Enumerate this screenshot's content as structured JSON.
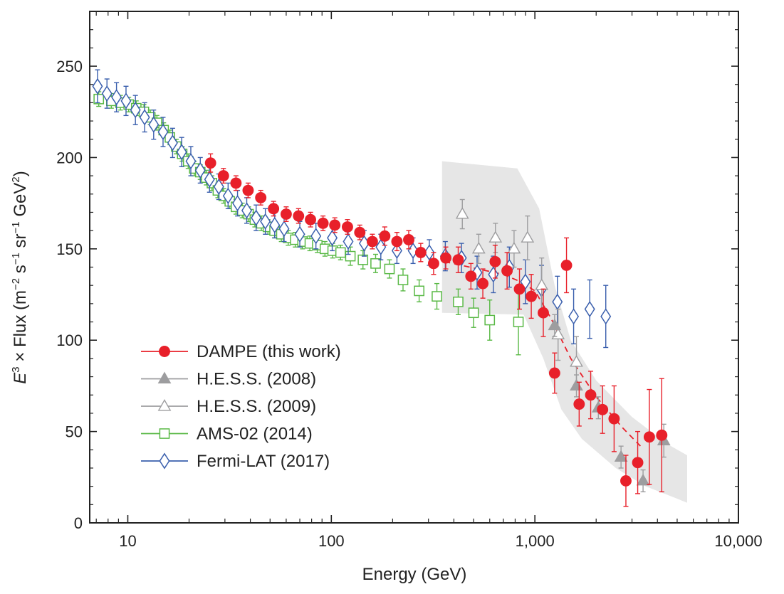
{
  "chart_data": {
    "type": "scatter",
    "x_scale": "log",
    "xlim": [
      6.5,
      10000
    ],
    "ylim": [
      0,
      280
    ],
    "xlabel": "Energy (GeV)",
    "ylabel": {
      "prefix": "E",
      "prefix_sup": "3",
      "text": " × Flux (m",
      "s1": "−2",
      "t1": " s",
      "s2": "−1",
      "t2": " sr",
      "s3": "−1",
      "t3": " GeV",
      "s4": "2",
      "t4": ")"
    },
    "x_ticks": [
      {
        "value": 10,
        "label": "10"
      },
      {
        "value": 100,
        "label": "100"
      },
      {
        "value": 1000,
        "label": "1,000"
      },
      {
        "value": 10000,
        "label": "10,000"
      }
    ],
    "y_ticks": [
      {
        "value": 0,
        "label": "0"
      },
      {
        "value": 50,
        "label": "50"
      },
      {
        "value": 100,
        "label": "100"
      },
      {
        "value": 150,
        "label": "150"
      },
      {
        "value": 200,
        "label": "200"
      },
      {
        "value": 250,
        "label": "250"
      }
    ],
    "legend_placement": "lower-left",
    "band": {
      "color": "#e6e6e6",
      "upper": [
        [
          350,
          198
        ],
        [
          820,
          194
        ],
        [
          1050,
          172
        ],
        [
          1250,
          130
        ],
        [
          1500,
          100
        ],
        [
          2000,
          78
        ],
        [
          3000,
          58
        ],
        [
          4500,
          43
        ],
        [
          5600,
          37
        ]
      ],
      "lower": [
        [
          350,
          115
        ],
        [
          880,
          114
        ],
        [
          1100,
          90
        ],
        [
          1350,
          62
        ],
        [
          1700,
          46
        ],
        [
          2500,
          30
        ],
        [
          3500,
          20
        ],
        [
          4800,
          14
        ],
        [
          5600,
          11
        ]
      ]
    },
    "fit_line": {
      "color": "#e8202a",
      "points": [
        [
          360,
          143
        ],
        [
          700,
          136
        ],
        [
          850,
          132
        ],
        [
          1000,
          127
        ],
        [
          1200,
          112
        ],
        [
          1500,
          90
        ],
        [
          2000,
          69
        ],
        [
          2700,
          52
        ],
        [
          3300,
          42
        ]
      ]
    },
    "series": [
      {
        "name": "DAMPE (this work)",
        "color": "#e8202a",
        "marker": "circle-filled",
        "points": [
          [
            25.5,
            197,
            5
          ],
          [
            29.5,
            190,
            4
          ],
          [
            34,
            186,
            4
          ],
          [
            39,
            182,
            4
          ],
          [
            45,
            178,
            4
          ],
          [
            52,
            172,
            4
          ],
          [
            60,
            169,
            4
          ],
          [
            69,
            168,
            4
          ],
          [
            79,
            166,
            4
          ],
          [
            91,
            164,
            4
          ],
          [
            104,
            163,
            4
          ],
          [
            120,
            162,
            4
          ],
          [
            138,
            159,
            4
          ],
          [
            159,
            154,
            4
          ],
          [
            183,
            157,
            5
          ],
          [
            210,
            154,
            5
          ],
          [
            240,
            155,
            5
          ],
          [
            275,
            148,
            5
          ],
          [
            318,
            142,
            6
          ],
          [
            365,
            145,
            6
          ],
          [
            420,
            144,
            7
          ],
          [
            485,
            135,
            7
          ],
          [
            555,
            131,
            8
          ],
          [
            638,
            143,
            9
          ],
          [
            730,
            138,
            10
          ],
          [
            840,
            128,
            11
          ],
          [
            960,
            124,
            12
          ],
          [
            1100,
            115,
            13
          ],
          [
            1250,
            82,
            11
          ],
          [
            1430,
            141,
            15
          ],
          [
            1650,
            65,
            12
          ],
          [
            1880,
            70,
            13
          ],
          [
            2150,
            62,
            13
          ],
          [
            2450,
            57,
            18
          ],
          [
            2800,
            23,
            14
          ],
          [
            3200,
            33,
            17
          ],
          [
            3650,
            47,
            26
          ],
          [
            4200,
            48,
            31
          ]
        ]
      },
      {
        "name": "H.E.S.S. (2008)",
        "color": "#9d9d9f",
        "marker": "triangle-filled",
        "points": [
          [
            1250,
            108,
            6
          ],
          [
            1600,
            75,
            6
          ],
          [
            2050,
            63,
            6
          ],
          [
            2650,
            36,
            6
          ],
          [
            3400,
            23,
            6
          ],
          [
            4300,
            45,
            9
          ]
        ]
      },
      {
        "name": "H.E.S.S. (2009)",
        "color": "#9d9d9f",
        "marker": "triangle-open",
        "points": [
          [
            440,
            169,
            8
          ],
          [
            530,
            150,
            8
          ],
          [
            640,
            156,
            8
          ],
          [
            790,
            150,
            10
          ],
          [
            920,
            156,
            12
          ],
          [
            1080,
            130,
            15
          ],
          [
            1300,
            103,
            14
          ],
          [
            1600,
            88,
            14
          ]
        ]
      },
      {
        "name": "AMS-02 (2014)",
        "color": "#5ab946",
        "marker": "square-open",
        "points": [
          [
            7.2,
            232,
            4
          ],
          [
            8.3,
            231,
            4
          ],
          [
            9.2,
            230,
            4
          ],
          [
            10.1,
            229,
            4
          ],
          [
            11,
            227,
            4
          ],
          [
            12,
            225,
            4
          ],
          [
            12.9,
            222,
            4
          ],
          [
            13.9,
            219,
            4
          ],
          [
            15,
            215,
            4
          ],
          [
            16.1,
            211,
            4
          ],
          [
            17.3,
            206,
            4
          ],
          [
            18.5,
            202,
            4
          ],
          [
            19.8,
            198,
            4
          ],
          [
            21.2,
            194,
            4
          ],
          [
            22.7,
            192,
            4
          ],
          [
            24.3,
            189,
            4
          ],
          [
            25.9,
            186,
            4
          ],
          [
            27.7,
            182,
            4
          ],
          [
            29.6,
            179,
            4
          ],
          [
            31.7,
            176,
            4
          ],
          [
            34,
            173,
            4
          ],
          [
            36.5,
            171,
            4
          ],
          [
            39.2,
            169,
            4
          ],
          [
            42.1,
            166,
            4
          ],
          [
            45.3,
            164,
            4
          ],
          [
            48.8,
            162,
            4
          ],
          [
            52.6,
            160,
            4
          ],
          [
            56.8,
            158,
            4
          ],
          [
            61.4,
            156,
            4
          ],
          [
            66.5,
            155,
            4
          ],
          [
            72.2,
            154,
            4
          ],
          [
            78.4,
            153,
            4
          ],
          [
            85.3,
            152,
            4
          ],
          [
            93,
            150,
            4
          ],
          [
            101.5,
            149,
            4
          ],
          [
            111,
            148,
            4
          ],
          [
            124,
            146,
            5
          ],
          [
            143,
            144,
            5
          ],
          [
            165,
            142,
            5
          ],
          [
            193,
            139,
            5
          ],
          [
            225,
            133,
            6
          ],
          [
            270,
            127,
            6
          ],
          [
            330,
            124,
            7
          ],
          [
            420,
            121,
            7
          ],
          [
            500,
            115,
            8
          ],
          [
            600,
            111,
            11
          ],
          [
            830,
            110,
            18
          ]
        ]
      },
      {
        "name": "Fermi-LAT (2017)",
        "color": "#3a5fad",
        "marker": "diamond-open",
        "points": [
          [
            7.1,
            239,
            9
          ],
          [
            7.9,
            235,
            8
          ],
          [
            8.8,
            233,
            8
          ],
          [
            9.8,
            231,
            8
          ],
          [
            10.9,
            226,
            8
          ],
          [
            12.1,
            222,
            8
          ],
          [
            13.4,
            218,
            8
          ],
          [
            14.9,
            214,
            8
          ],
          [
            16.6,
            208,
            8
          ],
          [
            18.4,
            203,
            8
          ],
          [
            20.4,
            198,
            8
          ],
          [
            22.7,
            193,
            7
          ],
          [
            25.2,
            188,
            7
          ],
          [
            28,
            184,
            7
          ],
          [
            31.1,
            179,
            7
          ],
          [
            34.6,
            175,
            7
          ],
          [
            38.4,
            171,
            7
          ],
          [
            42.7,
            167,
            7
          ],
          [
            47.4,
            165,
            7
          ],
          [
            52.7,
            163,
            7
          ],
          [
            58.6,
            161,
            7
          ],
          [
            70,
            158,
            7
          ],
          [
            84,
            157,
            7
          ],
          [
            101,
            156,
            7
          ],
          [
            121,
            154,
            7
          ],
          [
            145,
            153,
            7
          ],
          [
            175,
            151,
            7
          ],
          [
            210,
            149,
            7
          ],
          [
            252,
            149,
            7
          ],
          [
            303,
            148,
            7
          ],
          [
            363,
            146,
            8
          ],
          [
            436,
            145,
            8
          ],
          [
            520,
            137,
            9
          ],
          [
            625,
            136,
            10
          ],
          [
            749,
            140,
            11
          ],
          [
            898,
            132,
            12
          ],
          [
            1078,
            128,
            13
          ],
          [
            1290,
            121,
            14
          ],
          [
            1550,
            113,
            15
          ],
          [
            1860,
            117,
            16
          ],
          [
            2230,
            113,
            17
          ]
        ]
      }
    ]
  }
}
